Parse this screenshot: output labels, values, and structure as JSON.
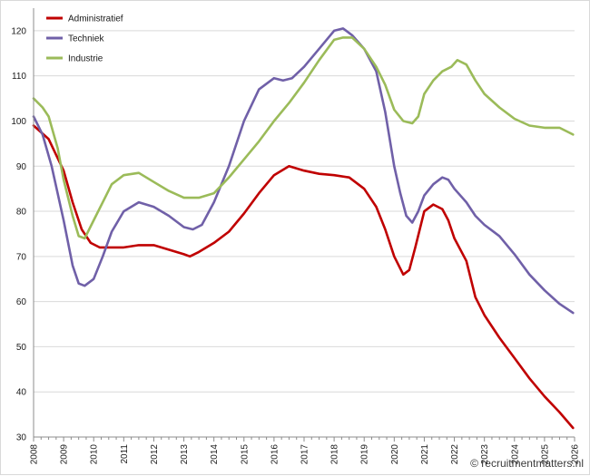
{
  "chart_data": {
    "type": "line",
    "title": "",
    "xlabel": "",
    "ylabel": "",
    "ylim": [
      30,
      125
    ],
    "y_ticks": [
      30,
      40,
      50,
      60,
      70,
      80,
      90,
      100,
      110,
      120
    ],
    "x_range": [
      2008,
      2026
    ],
    "x_ticks": [
      "2008",
      "2009",
      "2010",
      "2011",
      "2012",
      "2013",
      "2014",
      "2015",
      "2016",
      "2017",
      "2018",
      "2019",
      "2020",
      "2021",
      "2022",
      "2023",
      "2024",
      "2025",
      "2026"
    ],
    "grid": "horizontal",
    "legend_position": "top-left",
    "series": [
      {
        "name": "Administratief",
        "color": "#c00000",
        "x": [
          2008.0,
          2008.5,
          2009.0,
          2009.3,
          2009.6,
          2009.9,
          2010.2,
          2010.5,
          2011.0,
          2011.5,
          2012.0,
          2012.5,
          2013.0,
          2013.2,
          2013.5,
          2014.0,
          2014.5,
          2015.0,
          2015.5,
          2016.0,
          2016.5,
          2017.0,
          2017.5,
          2018.0,
          2018.5,
          2019.0,
          2019.4,
          2019.7,
          2020.0,
          2020.3,
          2020.5,
          2020.7,
          2021.0,
          2021.3,
          2021.6,
          2021.8,
          2022.0,
          2022.4,
          2022.7,
          2023.0,
          2023.5,
          2024.0,
          2024.5,
          2025.0,
          2025.5,
          2025.95
        ],
        "y": [
          99,
          96,
          89,
          82,
          76,
          73,
          72,
          72,
          72,
          72.5,
          72.5,
          71.5,
          70.5,
          70,
          71,
          73,
          75.5,
          79.5,
          84,
          88,
          90,
          89,
          88.3,
          88,
          87.5,
          85,
          81,
          76,
          70,
          66,
          67,
          72,
          80,
          81.5,
          80.5,
          78,
          74,
          69,
          61,
          57,
          52,
          47.5,
          43,
          39,
          35.5,
          32
        ]
      },
      {
        "name": "Techniek",
        "color": "#7060a8",
        "x": [
          2008.0,
          2008.3,
          2008.6,
          2009.0,
          2009.3,
          2009.5,
          2009.7,
          2010.0,
          2010.3,
          2010.6,
          2011.0,
          2011.5,
          2012.0,
          2012.5,
          2013.0,
          2013.3,
          2013.6,
          2014.0,
          2014.5,
          2015.0,
          2015.5,
          2016.0,
          2016.3,
          2016.6,
          2017.0,
          2017.5,
          2018.0,
          2018.3,
          2018.6,
          2019.0,
          2019.4,
          2019.7,
          2020.0,
          2020.2,
          2020.4,
          2020.6,
          2020.8,
          2021.0,
          2021.3,
          2021.6,
          2021.8,
          2022.0,
          2022.4,
          2022.7,
          2023.0,
          2023.5,
          2024.0,
          2024.5,
          2025.0,
          2025.5,
          2025.95
        ],
        "y": [
          101,
          97,
          90,
          78,
          68,
          64,
          63.5,
          65,
          70,
          75.5,
          80,
          82,
          81,
          79,
          76.5,
          76,
          77,
          82,
          90,
          100,
          107,
          109.5,
          109,
          109.5,
          112,
          116,
          120,
          120.5,
          119,
          116,
          111,
          102,
          90,
          84,
          79,
          77.5,
          80,
          83.5,
          86,
          87.5,
          87,
          85,
          82,
          79,
          77,
          74.5,
          70.5,
          66,
          62.5,
          59.5,
          57.5
        ]
      },
      {
        "name": "Industrie",
        "color": "#9bbb59",
        "x": [
          2008.0,
          2008.3,
          2008.5,
          2008.8,
          2009.0,
          2009.3,
          2009.5,
          2009.7,
          2010.0,
          2010.3,
          2010.6,
          2011.0,
          2011.5,
          2012.0,
          2012.5,
          2013.0,
          2013.5,
          2014.0,
          2014.5,
          2015.0,
          2015.5,
          2016.0,
          2016.5,
          2017.0,
          2017.5,
          2018.0,
          2018.3,
          2018.6,
          2019.0,
          2019.4,
          2019.7,
          2020.0,
          2020.3,
          2020.6,
          2020.8,
          2021.0,
          2021.3,
          2021.6,
          2021.9,
          2022.1,
          2022.4,
          2022.7,
          2023.0,
          2023.5,
          2024.0,
          2024.5,
          2025.0,
          2025.5,
          2025.95
        ],
        "y": [
          105,
          103,
          101,
          94,
          87,
          79,
          74.5,
          74,
          78,
          82,
          86,
          88,
          88.5,
          86.5,
          84.5,
          83,
          83,
          84,
          87.5,
          91.5,
          95.5,
          100,
          104,
          108.5,
          113.5,
          118,
          118.5,
          118.5,
          116,
          112,
          108,
          102.5,
          100,
          99.5,
          101,
          106,
          109,
          111,
          112,
          113.5,
          112.5,
          109,
          106,
          103,
          100.5,
          99,
          98.5,
          98.5,
          97
        ]
      }
    ]
  },
  "watermark": "© recruitmentmatters.nl"
}
